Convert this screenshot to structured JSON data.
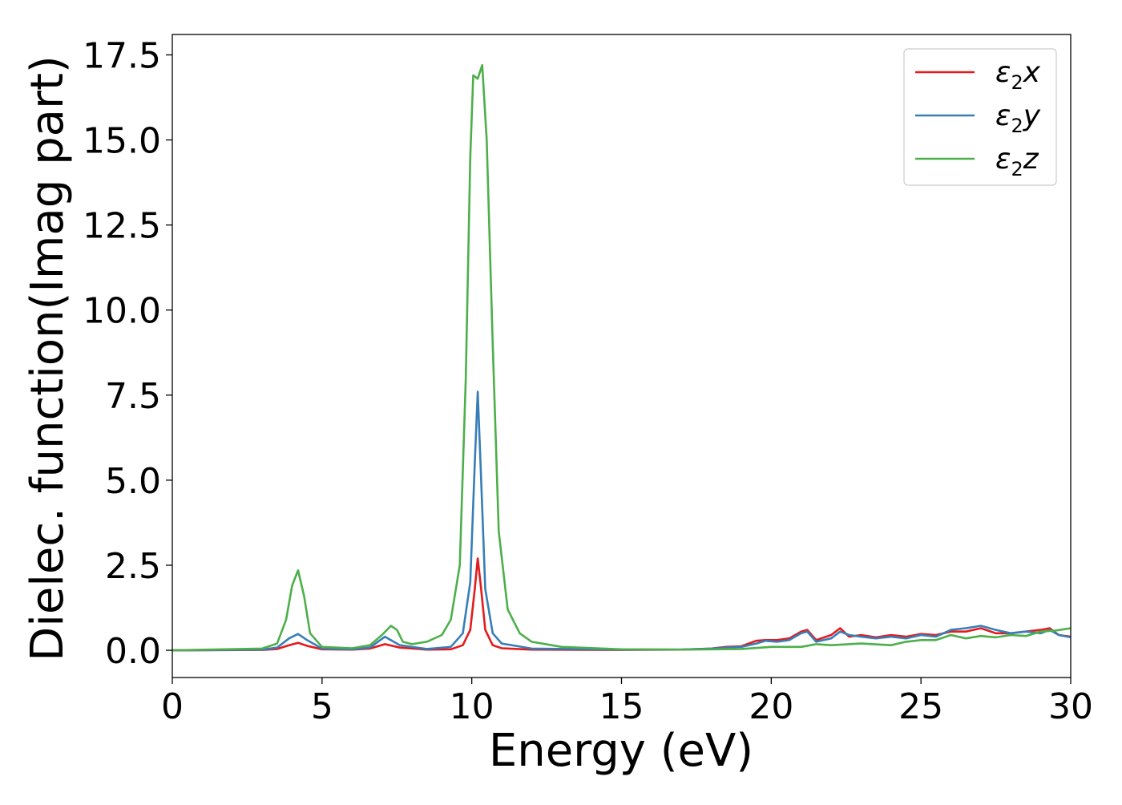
{
  "chart_data": {
    "type": "line",
    "title": "",
    "xlabel": "Energy (eV)",
    "ylabel": "Dielec. function(Imag part)",
    "xlim": [
      0,
      30
    ],
    "ylim": [
      -0.8,
      18.1
    ],
    "xticks": [
      0,
      5,
      10,
      15,
      20,
      25,
      30
    ],
    "xtick_labels": [
      "0",
      "5",
      "10",
      "15",
      "20",
      "25",
      "30"
    ],
    "yticks": [
      0,
      2.5,
      5,
      7.5,
      10,
      12.5,
      15,
      17.5
    ],
    "ytick_labels": [
      "0.0",
      "2.5",
      "5.0",
      "7.5",
      "10.0",
      "12.5",
      "15.0",
      "17.5"
    ],
    "grid": false,
    "legend_position": "top-right",
    "series": [
      {
        "name": "ε₂x",
        "legend_base": "ε",
        "legend_sub": "2",
        "legend_suffix": "x",
        "color": "#e41a1c",
        "points": [
          [
            0,
            0
          ],
          [
            3,
            0.01
          ],
          [
            3.5,
            0.04
          ],
          [
            3.9,
            0.15
          ],
          [
            4.2,
            0.22
          ],
          [
            4.5,
            0.13
          ],
          [
            5,
            0.03
          ],
          [
            6,
            0.02
          ],
          [
            6.6,
            0.05
          ],
          [
            7.1,
            0.18
          ],
          [
            7.6,
            0.08
          ],
          [
            8.5,
            0.02
          ],
          [
            9.3,
            0.03
          ],
          [
            9.7,
            0.15
          ],
          [
            9.95,
            0.6
          ],
          [
            10.1,
            1.8
          ],
          [
            10.2,
            2.7
          ],
          [
            10.3,
            1.9
          ],
          [
            10.45,
            0.6
          ],
          [
            10.7,
            0.15
          ],
          [
            11,
            0.06
          ],
          [
            12,
            0.02
          ],
          [
            15,
            0.01
          ],
          [
            17,
            0.02
          ],
          [
            18,
            0.05
          ],
          [
            18.5,
            0.1
          ],
          [
            19,
            0.12
          ],
          [
            19.5,
            0.28
          ],
          [
            19.8,
            0.3
          ],
          [
            20.2,
            0.3
          ],
          [
            20.6,
            0.35
          ],
          [
            21,
            0.55
          ],
          [
            21.2,
            0.6
          ],
          [
            21.5,
            0.3
          ],
          [
            22,
            0.45
          ],
          [
            22.3,
            0.65
          ],
          [
            22.6,
            0.4
          ],
          [
            23,
            0.45
          ],
          [
            23.5,
            0.38
          ],
          [
            24,
            0.45
          ],
          [
            24.5,
            0.4
          ],
          [
            25,
            0.48
          ],
          [
            25.5,
            0.45
          ],
          [
            26,
            0.55
          ],
          [
            26.5,
            0.55
          ],
          [
            27,
            0.65
          ],
          [
            27.5,
            0.5
          ],
          [
            28,
            0.5
          ],
          [
            28.5,
            0.55
          ],
          [
            29,
            0.6
          ],
          [
            29.3,
            0.65
          ],
          [
            29.6,
            0.45
          ],
          [
            30,
            0.4
          ]
        ]
      },
      {
        "name": "ε₂y",
        "legend_base": "ε",
        "legend_sub": "2",
        "legend_suffix": "y",
        "color": "#377eb8",
        "points": [
          [
            0,
            0
          ],
          [
            3,
            0.02
          ],
          [
            3.5,
            0.08
          ],
          [
            3.9,
            0.35
          ],
          [
            4.2,
            0.48
          ],
          [
            4.5,
            0.3
          ],
          [
            5,
            0.05
          ],
          [
            6,
            0.03
          ],
          [
            6.6,
            0.08
          ],
          [
            7.1,
            0.4
          ],
          [
            7.6,
            0.15
          ],
          [
            8.5,
            0.04
          ],
          [
            9.3,
            0.1
          ],
          [
            9.7,
            0.5
          ],
          [
            9.95,
            2
          ],
          [
            10.1,
            5.5
          ],
          [
            10.2,
            7.6
          ],
          [
            10.3,
            5.3
          ],
          [
            10.45,
            1.8
          ],
          [
            10.7,
            0.5
          ],
          [
            11,
            0.2
          ],
          [
            12,
            0.05
          ],
          [
            15,
            0.02
          ],
          [
            17,
            0.02
          ],
          [
            18,
            0.05
          ],
          [
            18.5,
            0.08
          ],
          [
            19,
            0.1
          ],
          [
            19.5,
            0.2
          ],
          [
            19.8,
            0.28
          ],
          [
            20.2,
            0.25
          ],
          [
            20.6,
            0.3
          ],
          [
            21,
            0.5
          ],
          [
            21.2,
            0.55
          ],
          [
            21.5,
            0.25
          ],
          [
            22,
            0.35
          ],
          [
            22.3,
            0.55
          ],
          [
            22.6,
            0.45
          ],
          [
            23,
            0.4
          ],
          [
            23.5,
            0.35
          ],
          [
            24,
            0.4
          ],
          [
            24.5,
            0.35
          ],
          [
            25,
            0.45
          ],
          [
            25.5,
            0.4
          ],
          [
            26,
            0.6
          ],
          [
            26.5,
            0.65
          ],
          [
            27,
            0.72
          ],
          [
            27.5,
            0.6
          ],
          [
            28,
            0.5
          ],
          [
            28.5,
            0.55
          ],
          [
            29,
            0.5
          ],
          [
            29.3,
            0.6
          ],
          [
            29.6,
            0.45
          ],
          [
            30,
            0.38
          ]
        ]
      },
      {
        "name": "ε₂z",
        "legend_base": "ε",
        "legend_sub": "2",
        "legend_suffix": "z",
        "color": "#4daf4a",
        "points": [
          [
            0,
            0
          ],
          [
            3,
            0.05
          ],
          [
            3.5,
            0.2
          ],
          [
            3.8,
            0.9
          ],
          [
            4,
            1.9
          ],
          [
            4.2,
            2.35
          ],
          [
            4.4,
            1.6
          ],
          [
            4.6,
            0.5
          ],
          [
            5,
            0.1
          ],
          [
            6,
            0.06
          ],
          [
            6.6,
            0.15
          ],
          [
            7,
            0.45
          ],
          [
            7.3,
            0.72
          ],
          [
            7.5,
            0.6
          ],
          [
            7.7,
            0.25
          ],
          [
            8,
            0.18
          ],
          [
            8.5,
            0.25
          ],
          [
            9,
            0.45
          ],
          [
            9.3,
            0.9
          ],
          [
            9.6,
            2.5
          ],
          [
            9.8,
            8
          ],
          [
            9.95,
            14.5
          ],
          [
            10.05,
            16.9
          ],
          [
            10.2,
            16.8
          ],
          [
            10.35,
            17.2
          ],
          [
            10.5,
            15
          ],
          [
            10.7,
            9
          ],
          [
            10.9,
            3.5
          ],
          [
            11.2,
            1.2
          ],
          [
            11.6,
            0.5
          ],
          [
            12,
            0.25
          ],
          [
            13,
            0.1
          ],
          [
            15,
            0.03
          ],
          [
            17,
            0.02
          ],
          [
            19,
            0.04
          ],
          [
            20,
            0.1
          ],
          [
            21,
            0.1
          ],
          [
            21.5,
            0.18
          ],
          [
            22,
            0.15
          ],
          [
            23,
            0.2
          ],
          [
            24,
            0.15
          ],
          [
            24.5,
            0.25
          ],
          [
            25,
            0.3
          ],
          [
            25.5,
            0.3
          ],
          [
            26,
            0.45
          ],
          [
            26.5,
            0.35
          ],
          [
            27,
            0.42
          ],
          [
            27.5,
            0.38
          ],
          [
            28,
            0.45
          ],
          [
            28.5,
            0.42
          ],
          [
            29,
            0.55
          ],
          [
            29.5,
            0.58
          ],
          [
            30,
            0.65
          ]
        ]
      }
    ]
  }
}
